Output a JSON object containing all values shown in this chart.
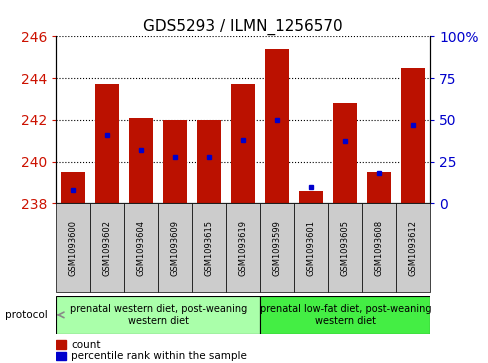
{
  "title": "GDS5293 / ILMN_1256570",
  "samples": [
    "GSM1093600",
    "GSM1093602",
    "GSM1093604",
    "GSM1093609",
    "GSM1093615",
    "GSM1093619",
    "GSM1093599",
    "GSM1093601",
    "GSM1093605",
    "GSM1093608",
    "GSM1093612"
  ],
  "counts": [
    239.5,
    243.7,
    242.1,
    242.0,
    242.0,
    243.7,
    245.4,
    238.6,
    242.8,
    239.5,
    244.5
  ],
  "percentiles": [
    8,
    41,
    32,
    28,
    28,
    38,
    50,
    10,
    37,
    18,
    47
  ],
  "ylim_left": [
    238,
    246
  ],
  "ylim_right": [
    0,
    100
  ],
  "yticks_left": [
    238,
    240,
    242,
    244,
    246
  ],
  "yticks_right": [
    0,
    25,
    50,
    75,
    100
  ],
  "bar_color": "#bb1100",
  "dot_color": "#0000cc",
  "bar_bottom": 238,
  "group1_label": "prenatal western diet, post-weaning\nwestern diet",
  "group2_label": "prenatal low-fat diet, post-weaning\nwestern diet",
  "protocol_label": "protocol",
  "group1_bg": "#aaffaa",
  "group2_bg": "#44ee44",
  "sample_bg": "#cccccc",
  "legend_count": "count",
  "legend_pct": "percentile rank within the sample",
  "title_fontsize": 11,
  "axis_color_left": "#cc1100",
  "axis_color_right": "#0000cc",
  "n_group1": 6,
  "n_group2": 5
}
